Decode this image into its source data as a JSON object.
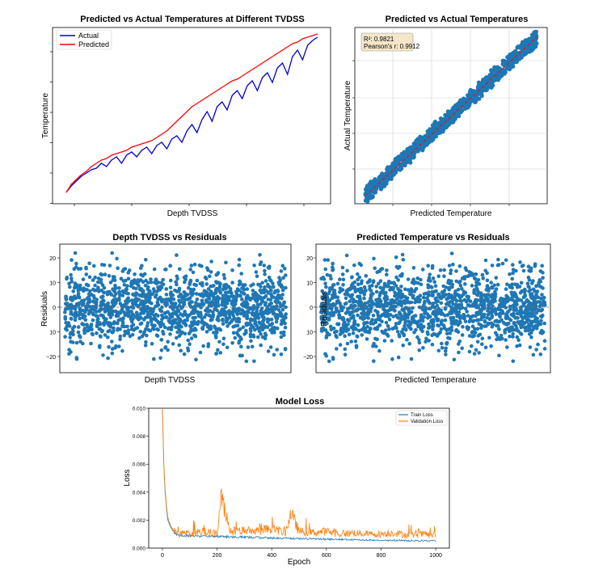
{
  "chart_data": [
    {
      "type": "line",
      "title": "Predicted vs Actual Temperatures at Different TVDSS",
      "xlabel": "Depth TVDSS",
      "ylabel": "Temperature",
      "legend": "top-left",
      "grid": false,
      "series": [
        {
          "name": "Actual",
          "color": "#0000cc",
          "y": [
            0.02,
            0.06,
            0.09,
            0.12,
            0.14,
            0.16,
            0.17,
            0.2,
            0.18,
            0.22,
            0.24,
            0.2,
            0.25,
            0.27,
            0.24,
            0.28,
            0.3,
            0.26,
            0.31,
            0.33,
            0.29,
            0.35,
            0.37,
            0.33,
            0.4,
            0.44,
            0.39,
            0.47,
            0.52,
            0.46,
            0.55,
            0.58,
            0.53,
            0.62,
            0.65,
            0.6,
            0.68,
            0.71,
            0.65,
            0.73,
            0.76,
            0.7,
            0.79,
            0.82,
            0.75,
            0.86,
            0.9,
            0.84,
            0.93,
            0.96,
            0.98
          ]
        },
        {
          "name": "Predicted",
          "color": "#ff0000",
          "y": [
            0.02,
            0.07,
            0.1,
            0.13,
            0.15,
            0.18,
            0.2,
            0.22,
            0.23,
            0.25,
            0.26,
            0.27,
            0.28,
            0.3,
            0.31,
            0.32,
            0.33,
            0.34,
            0.36,
            0.38,
            0.4,
            0.43,
            0.46,
            0.49,
            0.52,
            0.55,
            0.57,
            0.59,
            0.61,
            0.63,
            0.65,
            0.67,
            0.69,
            0.71,
            0.72,
            0.74,
            0.76,
            0.78,
            0.8,
            0.82,
            0.84,
            0.86,
            0.88,
            0.9,
            0.92,
            0.94,
            0.95,
            0.97,
            0.98,
            0.99,
            1.0
          ]
        }
      ]
    },
    {
      "type": "scatter",
      "title": "Predicted vs Actual Temperatures",
      "xlabel": "Predicted Temperature",
      "ylabel": "Actual Temperature",
      "grid": true,
      "annotation": {
        "r2_label": "R²: 0.9821",
        "pearson_label": "Pearson's r: 0.9912",
        "r2": 0.9821,
        "pearson_r": 0.9912
      },
      "series": [
        {
          "name": "points",
          "color": "#1f77b4"
        },
        {
          "name": "identity line",
          "color": "#ff0000",
          "style": "dashed"
        }
      ]
    },
    {
      "type": "scatter",
      "title": "Depth TVDSS vs Residuals",
      "xlabel": "Depth TVDSS",
      "ylabel": "Residuals",
      "ylim": [
        -25,
        25
      ],
      "yticks": [
        "20",
        "10",
        "0",
        "10",
        "−20"
      ],
      "zero_line": true,
      "series": [
        {
          "name": "residuals",
          "color": "#1f77b4"
        }
      ]
    },
    {
      "type": "scatter",
      "title": "Predicted Temperature vs Residuals",
      "xlabel": "Predicted Temperature",
      "ylabel": "Residuals",
      "ylim": [
        -25,
        25
      ],
      "yticks": [
        "20",
        "10",
        "0",
        "10",
        "−20"
      ],
      "zero_line": true,
      "series": [
        {
          "name": "residuals",
          "color": "#1f77b4"
        }
      ]
    },
    {
      "type": "line",
      "title": "Model Loss",
      "xlabel": "Epoch",
      "ylabel": "Loss",
      "xlim": [
        -50,
        1050
      ],
      "ylim": [
        0,
        0.01
      ],
      "xticks": [
        0,
        200,
        400,
        600,
        800,
        1000
      ],
      "xtick_labels": [
        "0",
        "200",
        "400",
        "600",
        "800",
        "1000"
      ],
      "yticks": [
        0,
        0.002,
        0.004,
        0.006,
        0.008,
        0.01
      ],
      "ytick_labels": [
        "0.000",
        "0.002",
        "0.004",
        "0.006",
        "0.008",
        "0.010"
      ],
      "legend": "top-right",
      "series": [
        {
          "name": "Train Loss",
          "color": "#1f77b4",
          "x": [
            0,
            5,
            10,
            15,
            20,
            30,
            40,
            50,
            60,
            80,
            100,
            150,
            200,
            250,
            300,
            350,
            400,
            450,
            500,
            550,
            600,
            650,
            700,
            750,
            800,
            850,
            900,
            950,
            1000
          ],
          "y": [
            0.01,
            0.006,
            0.004,
            0.0028,
            0.002,
            0.0015,
            0.0012,
            0.001,
            0.00095,
            0.0009,
            0.00088,
            0.00085,
            0.00083,
            0.0008,
            0.00078,
            0.00075,
            0.00073,
            0.0007,
            0.00068,
            0.00066,
            0.00064,
            0.00062,
            0.0006,
            0.00058,
            0.00056,
            0.00055,
            0.00054,
            0.00053,
            0.00052
          ]
        },
        {
          "name": "Validation Loss",
          "color": "#ff7f0e",
          "x": [
            0,
            5,
            10,
            15,
            20,
            30,
            40,
            50,
            60,
            80,
            100,
            150,
            200,
            215,
            250,
            300,
            350,
            400,
            450,
            470,
            500,
            550,
            600,
            650,
            700,
            750,
            800,
            850,
            900,
            950,
            1000
          ],
          "y": [
            0.01,
            0.0062,
            0.0042,
            0.003,
            0.0022,
            0.0016,
            0.0013,
            0.0011,
            0.001,
            0.0011,
            0.001,
            0.0012,
            0.001,
            0.0036,
            0.0012,
            0.0013,
            0.0012,
            0.0014,
            0.0011,
            0.0025,
            0.0012,
            0.0011,
            0.0012,
            0.001,
            0.0011,
            0.001,
            0.001,
            0.0011,
            0.0009,
            0.001,
            0.0009
          ]
        }
      ]
    }
  ]
}
